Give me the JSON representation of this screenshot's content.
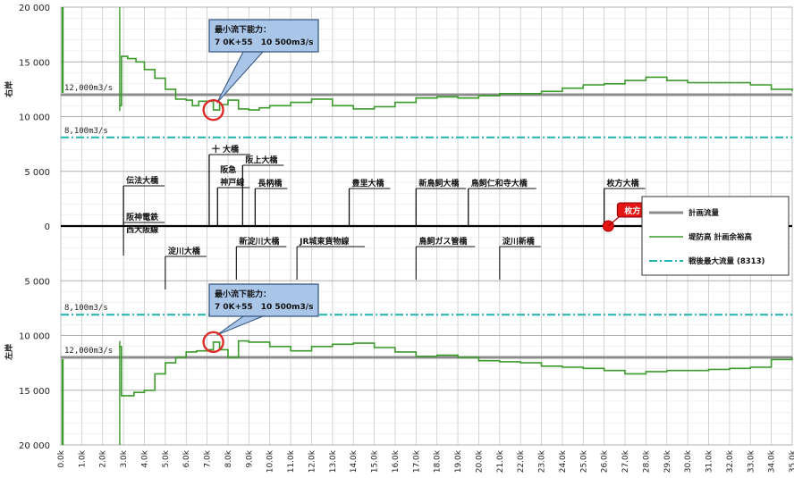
{
  "chart_data": {
    "type": "line",
    "title": "",
    "xlabel": "",
    "ylabel": "",
    "x_ticks": [
      "0.0k",
      "1.0k",
      "2.0k",
      "3.0k",
      "4.0k",
      "5.0k",
      "6.0k",
      "7.0k",
      "8.0k",
      "9.0k",
      "10.0k",
      "11.0k",
      "12.0k",
      "13.0k",
      "14.0k",
      "15.0k",
      "16.0k",
      "17.0k",
      "18.0k",
      "19.0k",
      "20.0k",
      "21.0k",
      "22.0k",
      "23.0k",
      "24.0k",
      "25.0k",
      "26.0k",
      "27.0k",
      "28.0k",
      "29.0k",
      "30.0k",
      "31.0k",
      "32.0k",
      "33.0k",
      "34.0k",
      "35.0k"
    ],
    "xlim": [
      0,
      35
    ],
    "y_tick_labels": [
      "20 000",
      "15 000",
      "10 000",
      "5 000",
      "0",
      "5 000",
      "10 000",
      "15 000",
      "20 000"
    ],
    "y_tick_values": [
      20000,
      15000,
      10000,
      5000,
      0,
      -5000,
      -10000,
      -15000,
      -20000
    ],
    "ylim": [
      -20000,
      20000
    ],
    "side_labels": {
      "upper": "右岸",
      "lower": "左岸"
    },
    "grid": true,
    "legend_position": "right-middle",
    "ref_lines": [
      {
        "value": 12000,
        "label": "12,000m3/s"
      },
      {
        "value": 8100,
        "label": "8,100m3/s"
      },
      {
        "value": -8100,
        "label": "8,100m3/s"
      },
      {
        "value": -12000,
        "label": "12,000m3/s"
      }
    ],
    "series": [
      {
        "name": "計画流量",
        "color": "#8c8c8c"
      },
      {
        "name": "堤防高 計画余裕高",
        "color": "#3a9a2a",
        "right_bank": [
          [
            2.8,
            11000
          ],
          [
            2.9,
            15500
          ],
          [
            3.2,
            15300
          ],
          [
            3.6,
            15000
          ],
          [
            4.0,
            14300
          ],
          [
            4.5,
            13500
          ],
          [
            5.0,
            12500
          ],
          [
            5.5,
            11600
          ],
          [
            6.0,
            11500
          ],
          [
            6.3,
            11000
          ],
          [
            6.6,
            11400
          ],
          [
            7.0,
            11400
          ],
          [
            7.3,
            10600
          ],
          [
            7.6,
            11100
          ],
          [
            8.0,
            11500
          ],
          [
            8.5,
            10700
          ],
          [
            9.0,
            10600
          ],
          [
            9.5,
            10800
          ],
          [
            10.0,
            11000
          ],
          [
            11.0,
            11300
          ],
          [
            12.0,
            11600
          ],
          [
            13.0,
            11000
          ],
          [
            14.0,
            10700
          ],
          [
            15.0,
            10900
          ],
          [
            16.0,
            11300
          ],
          [
            17.0,
            11700
          ],
          [
            18.0,
            11800
          ],
          [
            19.0,
            11700
          ],
          [
            20.0,
            11900
          ],
          [
            21.0,
            12100
          ],
          [
            22.0,
            12100
          ],
          [
            23.0,
            12300
          ],
          [
            24.0,
            12600
          ],
          [
            25.0,
            12900
          ],
          [
            26.0,
            13000
          ],
          [
            27.0,
            13300
          ],
          [
            28.0,
            13600
          ],
          [
            29.0,
            13300
          ],
          [
            30.0,
            13100
          ],
          [
            31.0,
            13100
          ],
          [
            32.0,
            13100
          ],
          [
            33.0,
            12900
          ],
          [
            34.0,
            12500
          ],
          [
            35.0,
            12300
          ]
        ],
        "left_bank": [
          [
            2.8,
            -11000
          ],
          [
            2.9,
            -15500
          ],
          [
            3.5,
            -15200
          ],
          [
            4.0,
            -15000
          ],
          [
            4.5,
            -13500
          ],
          [
            5.0,
            -12500
          ],
          [
            5.5,
            -12000
          ],
          [
            6.0,
            -11500
          ],
          [
            6.5,
            -11400
          ],
          [
            7.0,
            -11300
          ],
          [
            7.3,
            -10600
          ],
          [
            7.6,
            -11300
          ],
          [
            8.0,
            -12000
          ],
          [
            8.5,
            -10500
          ],
          [
            9.0,
            -10600
          ],
          [
            10.0,
            -11000
          ],
          [
            11.0,
            -11400
          ],
          [
            12.0,
            -11000
          ],
          [
            13.0,
            -10800
          ],
          [
            14.0,
            -10700
          ],
          [
            15.0,
            -11100
          ],
          [
            16.0,
            -11500
          ],
          [
            17.0,
            -11900
          ],
          [
            18.0,
            -11800
          ],
          [
            19.0,
            -12000
          ],
          [
            20.0,
            -12300
          ],
          [
            21.0,
            -12400
          ],
          [
            22.0,
            -12500
          ],
          [
            23.0,
            -12800
          ],
          [
            24.0,
            -12900
          ],
          [
            25.0,
            -13000
          ],
          [
            26.0,
            -13200
          ],
          [
            27.0,
            -13500
          ],
          [
            28.0,
            -13300
          ],
          [
            29.0,
            -13200
          ],
          [
            30.0,
            -13200
          ],
          [
            31.0,
            -13100
          ],
          [
            32.0,
            -13000
          ],
          [
            33.0,
            -12900
          ],
          [
            34.0,
            -12200
          ],
          [
            35.0,
            -12000
          ]
        ]
      },
      {
        "name": "戦後最大流量 (8313)",
        "color": "#22b5b0"
      }
    ],
    "bridges_upper": [
      {
        "x": 3.0,
        "label": "伝法大橋"
      },
      {
        "x": 7.1,
        "label": "十 大橋"
      },
      {
        "x": 7.5,
        "label": "阪急"
      },
      {
        "x": 7.5,
        "label": "神戸線"
      },
      {
        "x": 8.7,
        "label": "阪上大橋"
      },
      {
        "x": 9.3,
        "label": "長柄橋"
      },
      {
        "x": 13.8,
        "label": "豊里大橋"
      },
      {
        "x": 17.0,
        "label": "新鳥飼大橋"
      },
      {
        "x": 19.5,
        "label": "鳥飼仁和寺大橋"
      },
      {
        "x": 26.0,
        "label": "枚方大橋"
      }
    ],
    "bridges_lower": [
      {
        "x": 3.0,
        "label": "阪神電鉄"
      },
      {
        "x": 3.0,
        "label": "西大阪線"
      },
      {
        "x": 5.0,
        "label": "淀川大橋"
      },
      {
        "x": 8.4,
        "label": "新淀川大橋"
      },
      {
        "x": 11.3,
        "label": "JR城東貨物線"
      },
      {
        "x": 17.0,
        "label": "鳥飼ガス管橋"
      },
      {
        "x": 21.0,
        "label": "淀川新橋"
      }
    ],
    "annotations": [
      {
        "text_line1": "最小流下能力：",
        "text_line2": "7 0K+55　10 500m3/s",
        "x": 7.3,
        "y": 10600
      },
      {
        "text_line1": "最小流下能力：",
        "text_line2": "7 0K+55　10 500m3/s",
        "x": 7.3,
        "y": -10600
      }
    ],
    "marker": {
      "x": 26.2,
      "y": 0,
      "label": "枚方"
    }
  }
}
